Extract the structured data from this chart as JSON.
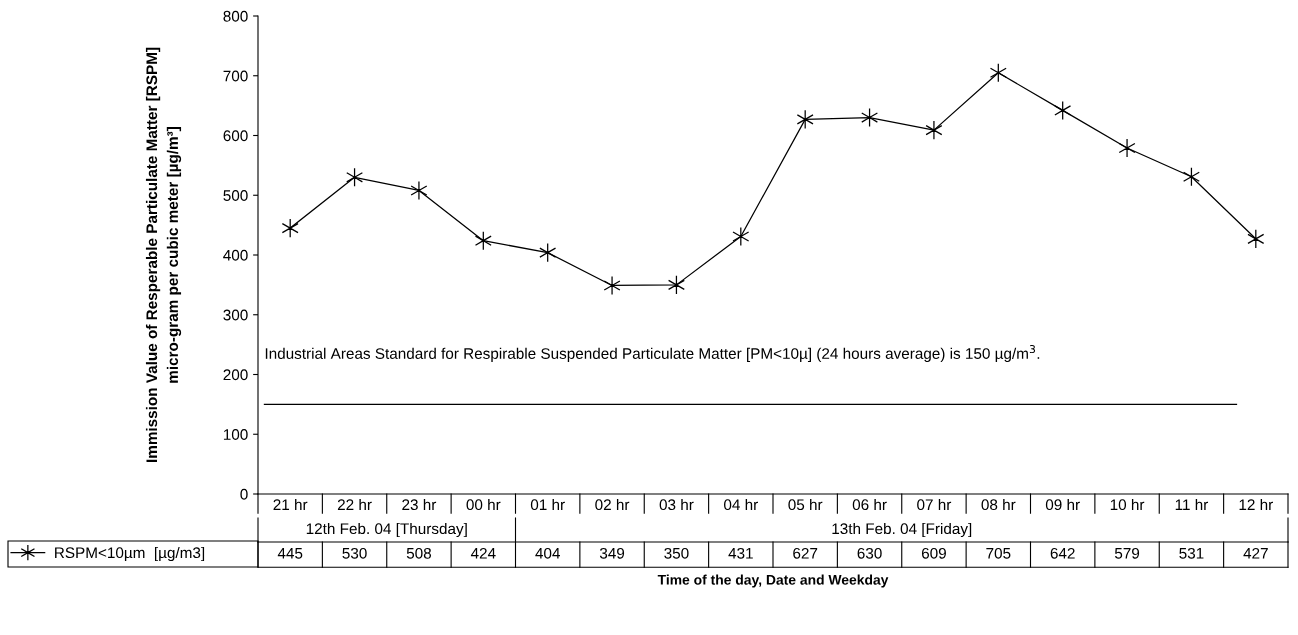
{
  "chart_data": {
    "type": "line",
    "ylabel": "Immission Value of Resperable Particulate Matter [RSPM]\nmicro-gram per cubic meter [µg/m³]",
    "xlabel": "Time of the day, Date and Weekday",
    "categories": [
      "21 hr",
      "22 hr",
      "23 hr",
      "00 hr",
      "01 hr",
      "02 hr",
      "03 hr",
      "04 hr",
      "05 hr",
      "06 hr",
      "07 hr",
      "08 hr",
      "09 hr",
      "10 hr",
      "11 hr",
      "12 hr"
    ],
    "series": [
      {
        "name": "RSPM<10µm  [µg/m3]",
        "color": "#000000",
        "values": [
          445,
          530,
          508,
          424,
          404,
          349,
          350,
          431,
          627,
          630,
          609,
          705,
          642,
          579,
          531,
          427
        ]
      }
    ],
    "ylim": [
      0,
      800
    ],
    "yticks": [
      0,
      100,
      200,
      300,
      400,
      500,
      600,
      700,
      800
    ],
    "ref_lines": [
      {
        "axis": "y",
        "value": 150,
        "label": "Industrial Areas Standard for Respirable Suspended Particulate Matter [PM<10µ] (24 hours average) is 150 µg/m$^{3}$.",
        "color": "#000000"
      }
    ],
    "annotations": [
      "12th Feb. 04 [Thursday]",
      "13th Feb. 04 [Friday]"
    ],
    "data_labels": true,
    "marker": "cross",
    "line_style": "solid",
    "legend": "bottom left",
    "grid": false
  }
}
